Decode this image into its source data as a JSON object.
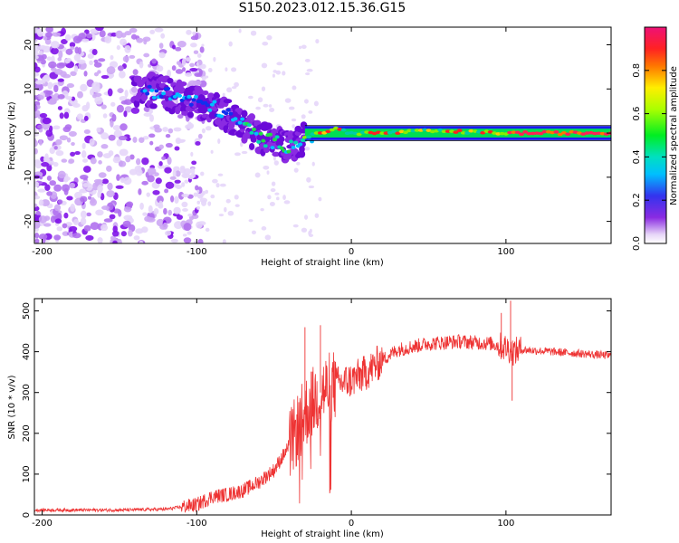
{
  "title": "S150.2023.012.15.36.G15",
  "chart_data": [
    {
      "type": "heatmap",
      "xlabel": "Height of straight line (km)",
      "ylabel": "Frequency (Hz)",
      "xlim": [
        -205,
        168
      ],
      "ylim": [
        -25,
        24
      ],
      "xticks": [
        -200,
        -100,
        0,
        100
      ],
      "yticks": [
        -20,
        -10,
        0,
        10,
        20
      ],
      "colorbar": {
        "label": "Normalized spectral amplitude",
        "range": [
          0,
          1
        ],
        "ticks": [
          0.0,
          0.2,
          0.4,
          0.6,
          0.8
        ],
        "colormap": "rainbow (white-purple-blue-cyan-green-yellow-red-pink)"
      },
      "ridge": {
        "description": "frequency trace of the signal",
        "x": [
          -135,
          -120,
          -100,
          -90,
          -80,
          -70,
          -60,
          -50,
          -40,
          -30,
          -20,
          -10,
          0,
          20,
          50,
          100,
          168
        ],
        "y": [
          10,
          9,
          7,
          6,
          4,
          2,
          -1,
          -2,
          -3,
          -1,
          0,
          1,
          0,
          0,
          0.5,
          0,
          0
        ]
      },
      "legend": "none",
      "grid": false
    },
    {
      "type": "line",
      "xlabel": "Height of straight line (km)",
      "ylabel": "SNR (10 * v/v)",
      "xlim": [
        -205,
        168
      ],
      "ylim": [
        0,
        530
      ],
      "xticks": [
        -200,
        -100,
        0,
        100
      ],
      "yticks": [
        0,
        100,
        200,
        300,
        400,
        500
      ],
      "series": [
        {
          "color": "#ee3333",
          "envelope_x": [
            -205,
            -150,
            -120,
            -100,
            -90,
            -80,
            -70,
            -60,
            -50,
            -40,
            -30,
            -20,
            -10,
            0,
            10,
            20,
            30,
            50,
            70,
            90,
            100,
            105,
            110,
            130,
            150,
            168
          ],
          "envelope_y": [
            12,
            12,
            14,
            25,
            45,
            50,
            60,
            80,
            110,
            170,
            250,
            300,
            320,
            330,
            350,
            380,
            405,
            420,
            425,
            420,
            410,
            400,
            405,
            400,
            395,
            390
          ],
          "spikes": [
            {
              "x": -30,
              "y": 460
            },
            {
              "x": -20,
              "y": 465
            },
            {
              "x": 97,
              "y": 495
            },
            {
              "x": 103,
              "y": 525
            },
            {
              "x": 104,
              "y": 280
            }
          ]
        }
      ],
      "legend": "none",
      "grid": false
    }
  ]
}
